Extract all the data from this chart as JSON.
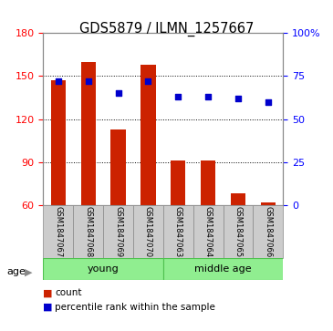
{
  "title": "GDS5879 / ILMN_1257667",
  "categories": [
    "GSM1847067",
    "GSM1847068",
    "GSM1847069",
    "GSM1847070",
    "GSM1847063",
    "GSM1847064",
    "GSM1847065",
    "GSM1847066"
  ],
  "bar_values": [
    147,
    160,
    113,
    158,
    91,
    91,
    68,
    62
  ],
  "percentile_values": [
    72,
    72,
    65,
    72,
    63,
    63,
    62,
    60
  ],
  "ylim_left": [
    60,
    180
  ],
  "ylim_right": [
    0,
    100
  ],
  "yticks_left": [
    60,
    90,
    120,
    150,
    180
  ],
  "yticks_right": [
    0,
    25,
    50,
    75,
    100
  ],
  "ytick_labels_right": [
    "0",
    "25",
    "50",
    "75",
    "100%"
  ],
  "bar_color": "#cc2200",
  "dot_color": "#0000cc",
  "groups": [
    {
      "label": "young",
      "indices": [
        0,
        1,
        2,
        3
      ],
      "color": "#90ee90"
    },
    {
      "label": "middle age",
      "indices": [
        4,
        5,
        6,
        7
      ],
      "color": "#90ee90"
    }
  ],
  "age_label": "age",
  "grid_color": "#000000",
  "background_color": "#ffffff",
  "tick_area_color": "#cccccc",
  "legend_items": [
    {
      "label": "count",
      "color": "#cc2200"
    },
    {
      "label": "percentile rank within the sample",
      "color": "#0000cc"
    }
  ]
}
